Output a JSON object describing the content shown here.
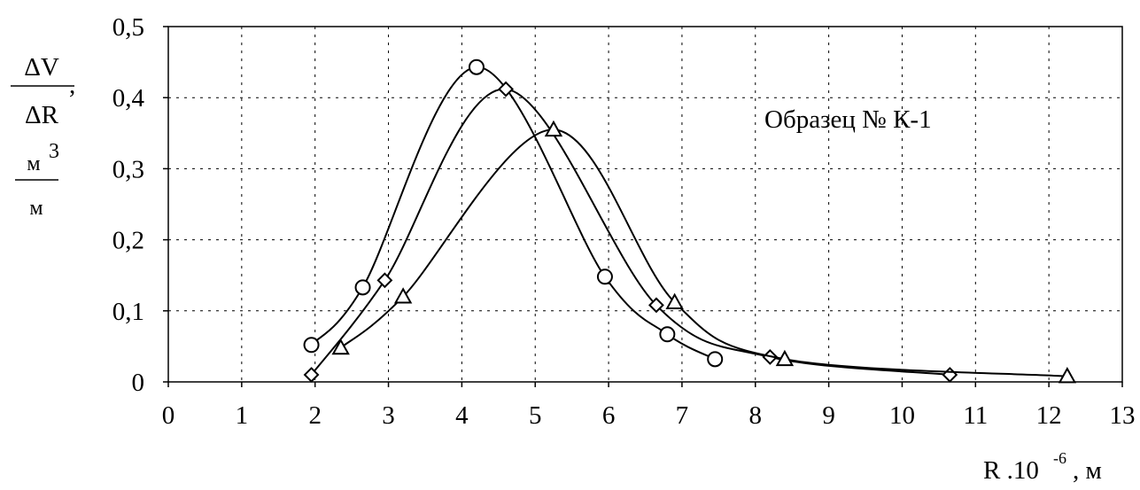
{
  "chart_data": {
    "type": "line",
    "annotation": "Образец № К-1",
    "ylabel": {
      "numerator": "ΔV",
      "denominator": "ΔR",
      "comma": ",",
      "unit_numerator": "м",
      "unit_exponent": "3",
      "unit_denominator": "м"
    },
    "xlabel": {
      "prefix": "R .10",
      "exponent": "-6",
      "suffix": ", м"
    },
    "xlim": [
      0,
      13
    ],
    "ylim": [
      0,
      0.5
    ],
    "x_ticks": [
      "0",
      "1",
      "2",
      "3",
      "4",
      "5",
      "6",
      "7",
      "8",
      "9",
      "10",
      "11",
      "12",
      "13"
    ],
    "y_ticks": [
      "0",
      "0,1",
      "0,2",
      "0,3",
      "0,4",
      "0,5"
    ],
    "grid": true,
    "series": [
      {
        "marker": "circle",
        "points": [
          [
            1.95,
            0.052
          ],
          [
            2.65,
            0.133
          ],
          [
            4.2,
            0.443
          ],
          [
            5.95,
            0.148
          ],
          [
            6.8,
            0.067
          ],
          [
            7.45,
            0.032
          ]
        ]
      },
      {
        "marker": "diamond",
        "points": [
          [
            1.95,
            0.01
          ],
          [
            2.95,
            0.143
          ],
          [
            4.6,
            0.412
          ],
          [
            6.65,
            0.108
          ],
          [
            8.2,
            0.035
          ],
          [
            10.65,
            0.01
          ]
        ]
      },
      {
        "marker": "triangle",
        "points": [
          [
            2.35,
            0.048
          ],
          [
            3.2,
            0.12
          ],
          [
            5.25,
            0.355
          ],
          [
            6.9,
            0.112
          ],
          [
            8.4,
            0.032
          ],
          [
            12.25,
            0.008
          ]
        ]
      }
    ]
  }
}
